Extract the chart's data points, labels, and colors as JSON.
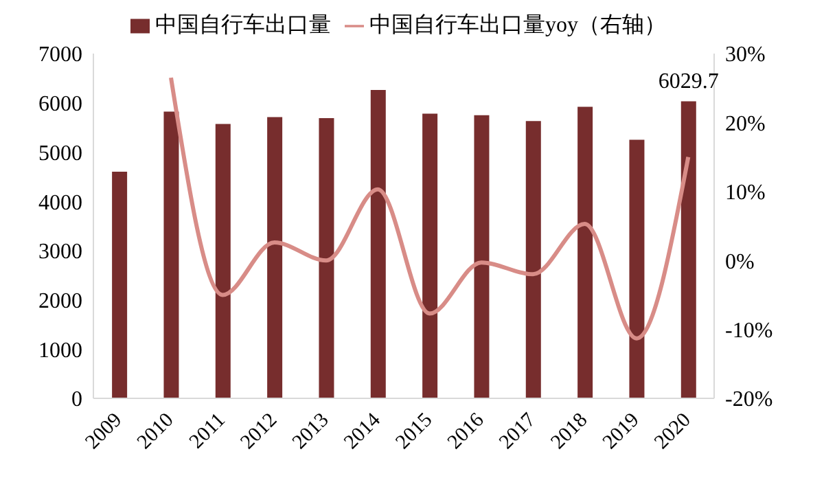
{
  "chart_data": {
    "type": "bar",
    "categories": [
      "2009",
      "2010",
      "2011",
      "2012",
      "2013",
      "2014",
      "2015",
      "2016",
      "2017",
      "2018",
      "2019",
      "2020"
    ],
    "series": [
      {
        "name": "中国自行车出口量",
        "color": "#772d2d",
        "values": [
          4600,
          5820,
          5570,
          5710,
          5690,
          6260,
          5780,
          5750,
          5630,
          5920,
          5250,
          6029.7
        ],
        "value_labels": [
          null,
          null,
          null,
          null,
          null,
          null,
          null,
          null,
          null,
          null,
          null,
          "6029.7"
        ]
      },
      {
        "name": "中国自行车出口量yoy（右轴）",
        "type": "line",
        "axis": "y2",
        "color": "#d88c87",
        "values": [
          null,
          26.5,
          -5,
          2.6,
          0,
          10.3,
          -7.7,
          -0.3,
          -2,
          5.3,
          -11.3,
          15
        ]
      }
    ],
    "ylim": [
      0,
      7000
    ],
    "yticks": [
      0,
      1000,
      2000,
      3000,
      4000,
      5000,
      6000,
      7000
    ],
    "y2lim": [
      -20,
      30
    ],
    "y2ticks": [
      {
        "value": -20,
        "label": "-20%"
      },
      {
        "value": -10,
        "label": "-10%"
      },
      {
        "value": 0,
        "label": "0%"
      },
      {
        "value": 10,
        "label": "10%"
      },
      {
        "value": 20,
        "label": "20%"
      },
      {
        "value": 30,
        "label": "30%"
      }
    ],
    "legend": "top",
    "marker": "none",
    "line_style": "solid"
  }
}
